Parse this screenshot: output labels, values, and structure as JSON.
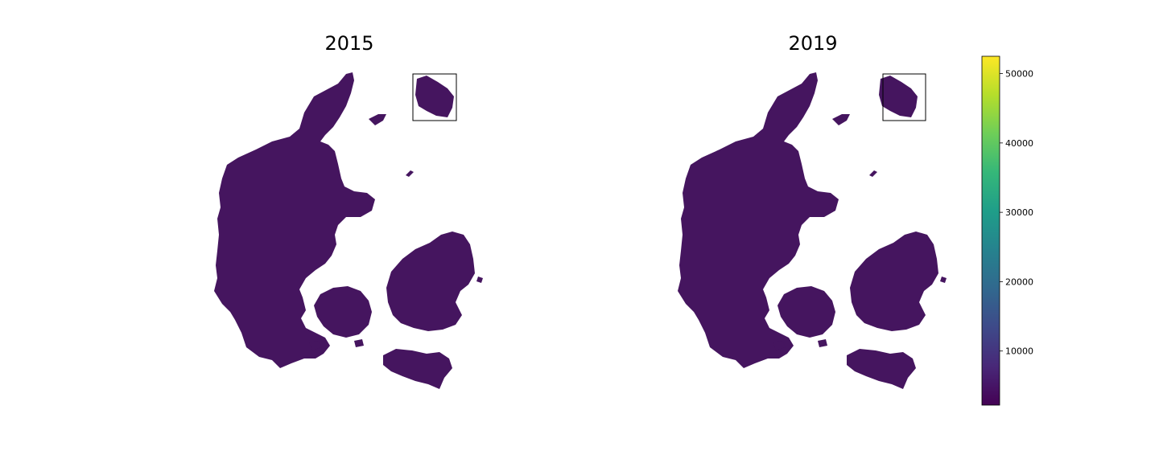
{
  "panels": [
    {
      "title": "2015"
    },
    {
      "title": "2019"
    }
  ],
  "colorbar": {
    "colormap": "viridis",
    "min": 2200,
    "max": 52500,
    "ticks": [
      {
        "value": 10000,
        "label": "10000"
      },
      {
        "value": 20000,
        "label": "20000"
      },
      {
        "value": 30000,
        "label": "30000"
      },
      {
        "value": 40000,
        "label": "40000"
      },
      {
        "value": 50000,
        "label": "50000"
      }
    ],
    "stops": [
      "#440154",
      "#482878",
      "#3e4989",
      "#31688e",
      "#26828e",
      "#1f9e89",
      "#35b779",
      "#6ece58",
      "#b5de2b",
      "#fde725"
    ]
  },
  "colors": {
    "land_base": "#45155f",
    "land_low": "#471063",
    "land_mid": "#3b3f87",
    "border": "#8a7fb0",
    "background": "#ffffff"
  }
}
